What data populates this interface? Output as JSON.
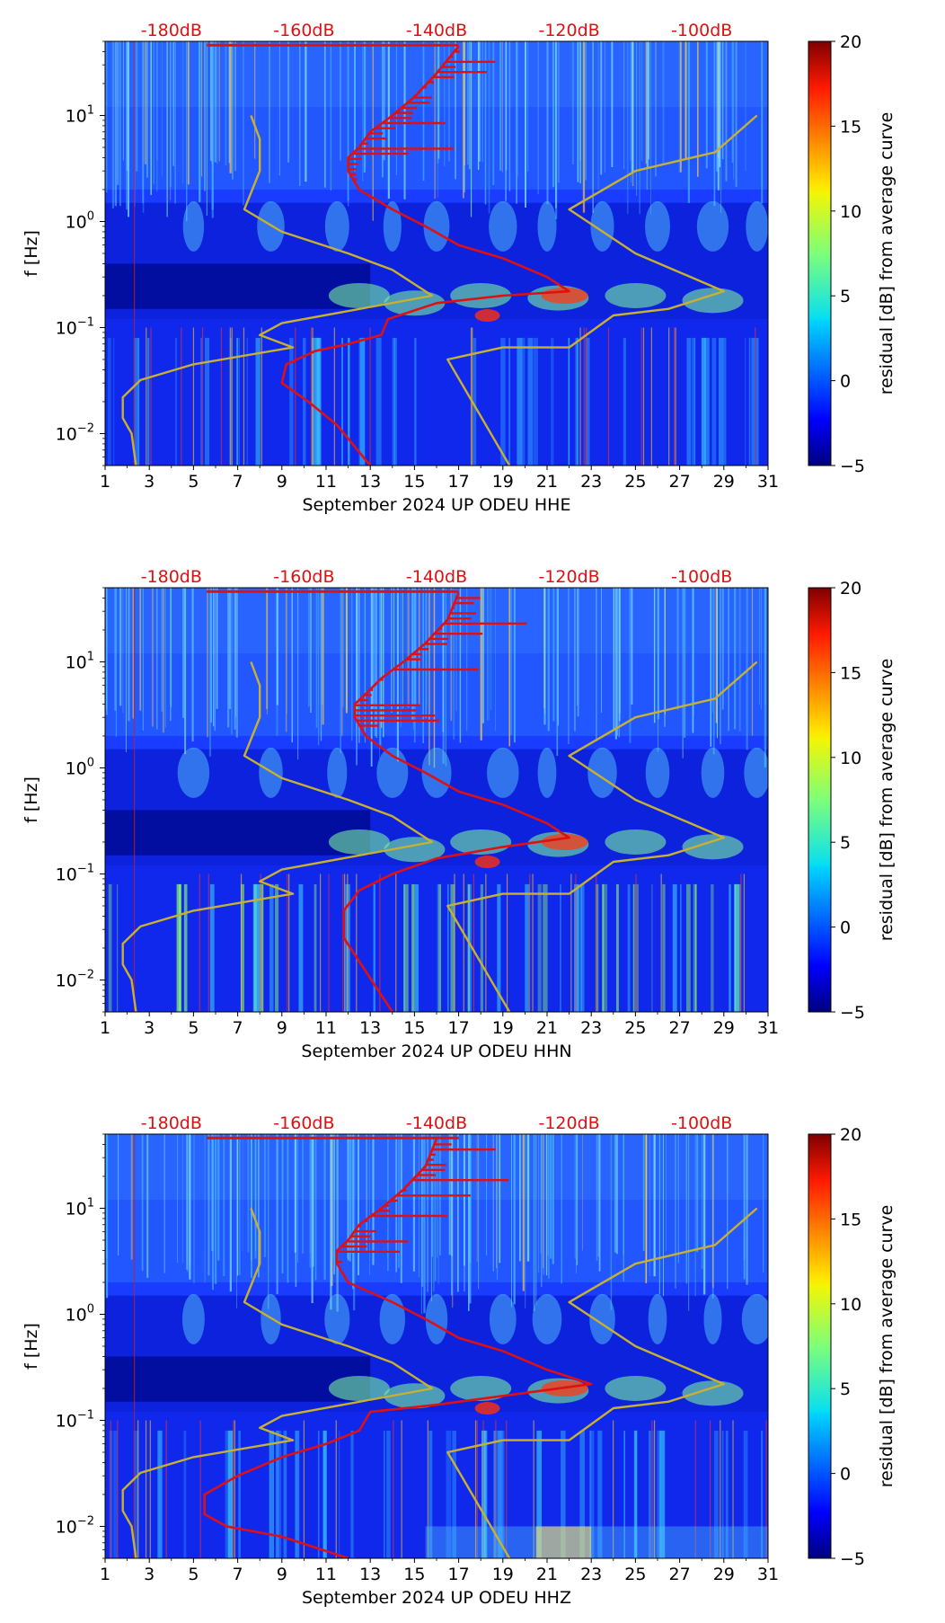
{
  "chart_data": [
    {
      "type": "heatmap",
      "xlabel": "September 2024 UP ODEU  HHE",
      "ylabel": "f [Hz]",
      "xlim": [
        1,
        31
      ],
      "ylim": [
        0.005,
        50
      ],
      "xticks": [
        "1",
        "3",
        "5",
        "7",
        "9",
        "11",
        "13",
        "15",
        "17",
        "19",
        "21",
        "23",
        "25",
        "27",
        "29",
        "31"
      ],
      "yticks": [
        {
          "value": 0.01,
          "base": "10",
          "exp": "−2"
        },
        {
          "value": 0.1,
          "base": "10",
          "exp": "−1"
        },
        {
          "value": 1,
          "base": "10",
          "exp": "0"
        },
        {
          "value": 10,
          "base": "10",
          "exp": "1"
        }
      ],
      "top_labels": [
        "-180dB",
        "-160dB",
        "-140dB",
        "-120dB",
        "-100dB"
      ],
      "colorbar": {
        "label": "residual [dB] from average curve",
        "min": -5,
        "max": 20,
        "ticks": [
          "−5",
          "0",
          "5",
          "10",
          "15",
          "20"
        ]
      },
      "series": [
        {
          "name": "average noise curve",
          "color": "#e01010",
          "points": [
            [
              13,
              0.005
            ],
            [
              11.5,
              0.012
            ],
            [
              10.2,
              0.02
            ],
            [
              9,
              0.03
            ],
            [
              9.2,
              0.045
            ],
            [
              10.5,
              0.06
            ],
            [
              12,
              0.07
            ],
            [
              13.5,
              0.085
            ],
            [
              13.8,
              0.12
            ],
            [
              16,
              0.17
            ],
            [
              19,
              0.2
            ],
            [
              22,
              0.22
            ],
            [
              21,
              0.3
            ],
            [
              19,
              0.45
            ],
            [
              17,
              0.6
            ],
            [
              15.5,
              0.9
            ],
            [
              14,
              1.3
            ],
            [
              12.5,
              2
            ],
            [
              12,
              3
            ],
            [
              12,
              4
            ],
            [
              12.5,
              5
            ],
            [
              13,
              7
            ],
            [
              14,
              10
            ],
            [
              15,
              15
            ],
            [
              16,
              25
            ],
            [
              17,
              45
            ]
          ]
        },
        {
          "name": "noise model bounds",
          "color": "#c8b030",
          "points": [
            [
              2.4,
              0.005
            ],
            [
              2.2,
              0.01
            ],
            [
              1.8,
              0.014
            ],
            [
              1.8,
              0.022
            ],
            [
              2.6,
              0.032
            ],
            [
              5,
              0.045
            ],
            [
              9.5,
              0.065
            ],
            [
              8,
              0.085
            ],
            [
              9,
              0.11
            ],
            [
              15.8,
              0.2
            ],
            [
              14,
              0.35
            ],
            [
              12,
              0.5
            ],
            [
              9,
              0.8
            ],
            [
              7.3,
              1.3
            ],
            [
              8,
              3
            ],
            [
              8,
              6
            ],
            [
              7.6,
              10
            ]
          ]
        },
        {
          "name": "noise model bounds upper",
          "color": "#c8b030",
          "points": [
            [
              19.3,
              0.005
            ],
            [
              16.5,
              0.05
            ],
            [
              19,
              0.065
            ],
            [
              22,
              0.065
            ],
            [
              24,
              0.13
            ],
            [
              26.5,
              0.15
            ],
            [
              29,
              0.22
            ],
            [
              25,
              0.5
            ],
            [
              22,
              1.3
            ],
            [
              25,
              3
            ],
            [
              28.6,
              4.5
            ],
            [
              30.5,
              10
            ]
          ]
        }
      ]
    },
    {
      "type": "heatmap",
      "xlabel": "September 2024 UP ODEU  HHN",
      "ylabel": "f [Hz]",
      "xlim": [
        1,
        31
      ],
      "ylim": [
        0.005,
        50
      ],
      "xticks": [
        "1",
        "3",
        "5",
        "7",
        "9",
        "11",
        "13",
        "15",
        "17",
        "19",
        "21",
        "23",
        "25",
        "27",
        "29",
        "31"
      ],
      "yticks": [
        {
          "value": 0.01,
          "base": "10",
          "exp": "−2"
        },
        {
          "value": 0.1,
          "base": "10",
          "exp": "−1"
        },
        {
          "value": 1,
          "base": "10",
          "exp": "0"
        },
        {
          "value": 10,
          "base": "10",
          "exp": "1"
        }
      ],
      "top_labels": [
        "-180dB",
        "-160dB",
        "-140dB",
        "-120dB",
        "-100dB"
      ],
      "colorbar": {
        "label": "residual [dB] from average curve",
        "min": -5,
        "max": 20,
        "ticks": [
          "−5",
          "0",
          "5",
          "10",
          "15",
          "20"
        ]
      },
      "series": [
        {
          "name": "average noise curve",
          "color": "#e01010",
          "points": [
            [
              14,
              0.005
            ],
            [
              12.8,
              0.012
            ],
            [
              11.8,
              0.025
            ],
            [
              11.8,
              0.045
            ],
            [
              12.5,
              0.07
            ],
            [
              14,
              0.1
            ],
            [
              16,
              0.14
            ],
            [
              19,
              0.18
            ],
            [
              22,
              0.22
            ],
            [
              21,
              0.3
            ],
            [
              19,
              0.45
            ],
            [
              17,
              0.6
            ],
            [
              15.5,
              0.9
            ],
            [
              14,
              1.3
            ],
            [
              12.8,
              2
            ],
            [
              12.3,
              3
            ],
            [
              12.3,
              4
            ],
            [
              12.8,
              5
            ],
            [
              13.5,
              7
            ],
            [
              14.5,
              10
            ],
            [
              15.5,
              15
            ],
            [
              16.5,
              25
            ],
            [
              17,
              45
            ]
          ]
        },
        {
          "name": "noise model bounds",
          "color": "#c8b030",
          "points": [
            [
              2.4,
              0.005
            ],
            [
              2.2,
              0.01
            ],
            [
              1.8,
              0.014
            ],
            [
              1.8,
              0.022
            ],
            [
              2.6,
              0.032
            ],
            [
              5,
              0.045
            ],
            [
              9.5,
              0.065
            ],
            [
              8,
              0.085
            ],
            [
              9,
              0.11
            ],
            [
              15.8,
              0.2
            ],
            [
              14,
              0.35
            ],
            [
              12,
              0.5
            ],
            [
              9,
              0.8
            ],
            [
              7.3,
              1.3
            ],
            [
              8,
              3
            ],
            [
              8,
              6
            ],
            [
              7.6,
              10
            ]
          ]
        },
        {
          "name": "noise model bounds upper",
          "color": "#c8b030",
          "points": [
            [
              19.3,
              0.005
            ],
            [
              16.5,
              0.05
            ],
            [
              19,
              0.065
            ],
            [
              22,
              0.065
            ],
            [
              24,
              0.13
            ],
            [
              26.5,
              0.15
            ],
            [
              29,
              0.22
            ],
            [
              25,
              0.5
            ],
            [
              22,
              1.3
            ],
            [
              25,
              3
            ],
            [
              28.6,
              4.5
            ],
            [
              30.5,
              10
            ]
          ]
        }
      ]
    },
    {
      "type": "heatmap",
      "xlabel": "September 2024 UP ODEU  HHZ",
      "ylabel": "f [Hz]",
      "xlim": [
        1,
        31
      ],
      "ylim": [
        0.005,
        50
      ],
      "xticks": [
        "1",
        "3",
        "5",
        "7",
        "9",
        "11",
        "13",
        "15",
        "17",
        "19",
        "21",
        "23",
        "25",
        "27",
        "29",
        "31"
      ],
      "yticks": [
        {
          "value": 0.01,
          "base": "10",
          "exp": "−2"
        },
        {
          "value": 0.1,
          "base": "10",
          "exp": "−1"
        },
        {
          "value": 1,
          "base": "10",
          "exp": "0"
        },
        {
          "value": 10,
          "base": "10",
          "exp": "1"
        }
      ],
      "top_labels": [
        "-180dB",
        "-160dB",
        "-140dB",
        "-120dB",
        "-100dB"
      ],
      "colorbar": {
        "label": "residual [dB] from average curve",
        "min": -5,
        "max": 20,
        "ticks": [
          "−5",
          "0",
          "5",
          "10",
          "15",
          "20"
        ]
      },
      "series": [
        {
          "name": "average noise curve",
          "color": "#e01010",
          "points": [
            [
              12,
              0.005
            ],
            [
              9,
              0.008
            ],
            [
              6.5,
              0.01
            ],
            [
              5.5,
              0.013
            ],
            [
              5.5,
              0.02
            ],
            [
              7,
              0.03
            ],
            [
              9,
              0.045
            ],
            [
              11,
              0.06
            ],
            [
              12.5,
              0.08
            ],
            [
              13,
              0.12
            ],
            [
              16,
              0.14
            ],
            [
              19,
              0.17
            ],
            [
              23,
              0.22
            ],
            [
              21,
              0.3
            ],
            [
              19,
              0.45
            ],
            [
              17,
              0.6
            ],
            [
              15.5,
              0.9
            ],
            [
              14,
              1.3
            ],
            [
              12,
              2
            ],
            [
              11.5,
              3
            ],
            [
              11.5,
              4
            ],
            [
              12,
              5
            ],
            [
              12.5,
              7
            ],
            [
              13.5,
              10
            ],
            [
              14.5,
              15
            ],
            [
              15.5,
              25
            ],
            [
              16,
              45
            ]
          ]
        },
        {
          "name": "noise model bounds",
          "color": "#c8b030",
          "points": [
            [
              2.4,
              0.005
            ],
            [
              2.2,
              0.01
            ],
            [
              1.8,
              0.014
            ],
            [
              1.8,
              0.022
            ],
            [
              2.6,
              0.032
            ],
            [
              5,
              0.045
            ],
            [
              9.5,
              0.065
            ],
            [
              8,
              0.085
            ],
            [
              9,
              0.11
            ],
            [
              15.8,
              0.2
            ],
            [
              14,
              0.35
            ],
            [
              12,
              0.5
            ],
            [
              9,
              0.8
            ],
            [
              7.3,
              1.3
            ],
            [
              8,
              3
            ],
            [
              8,
              6
            ],
            [
              7.6,
              10
            ]
          ]
        },
        {
          "name": "noise model bounds upper",
          "color": "#c8b030",
          "points": [
            [
              19.3,
              0.005
            ],
            [
              16.5,
              0.05
            ],
            [
              19,
              0.065
            ],
            [
              22,
              0.065
            ],
            [
              24,
              0.13
            ],
            [
              26.5,
              0.15
            ],
            [
              29,
              0.22
            ],
            [
              25,
              0.5
            ],
            [
              22,
              1.3
            ],
            [
              25,
              3
            ],
            [
              28.6,
              4.5
            ],
            [
              30.5,
              10
            ]
          ]
        }
      ]
    }
  ]
}
